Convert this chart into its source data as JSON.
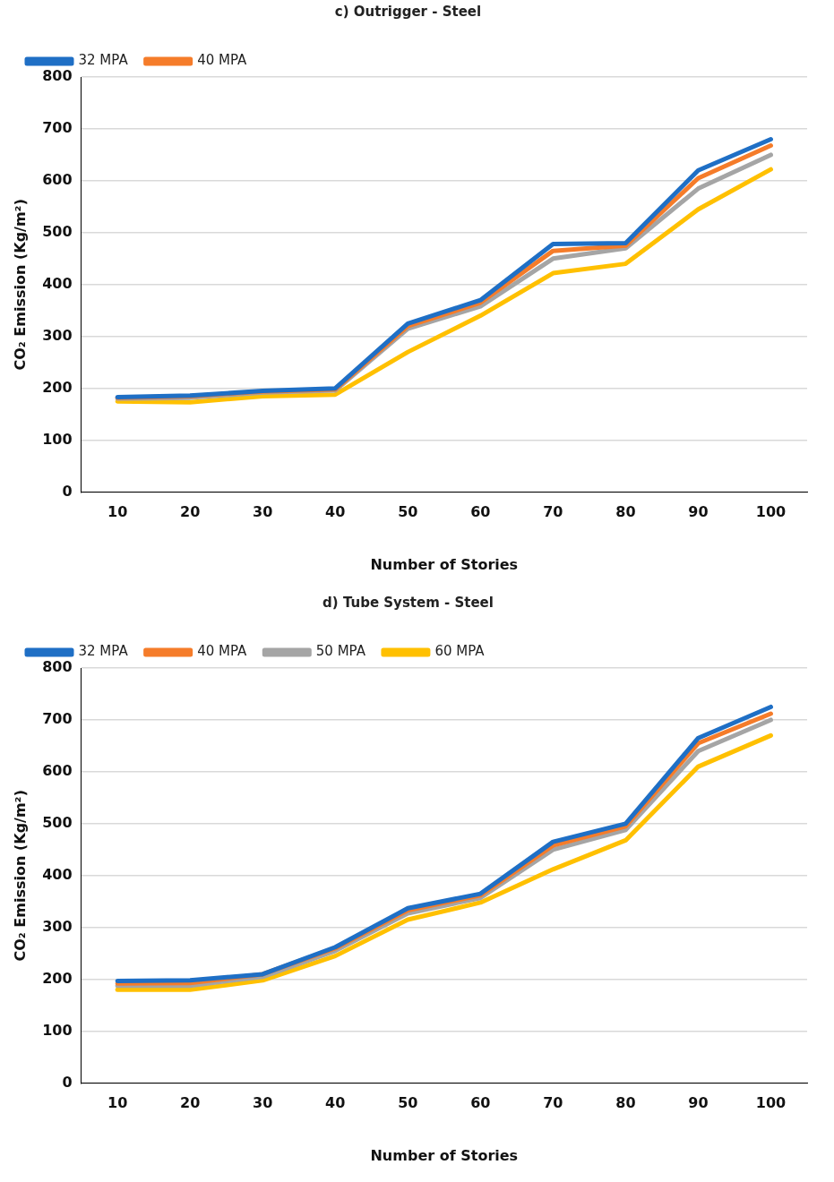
{
  "chart_data": [
    {
      "type": "line",
      "title": "c) Outrigger - Steel",
      "xlabel": "Number of Stories",
      "ylabel": "CO₂ Emission (Kg/m²)",
      "categories": [
        "10",
        "20",
        "30",
        "40",
        "50",
        "60",
        "70",
        "80",
        "90",
        "100"
      ],
      "ylim": [
        0,
        800
      ],
      "yticks": [
        0,
        100,
        200,
        300,
        400,
        500,
        600,
        700,
        800
      ],
      "grid": "y",
      "legend": "top left",
      "marker": "none",
      "line_style": "solid",
      "series": [
        {
          "name": "32 MPA",
          "color": "#1f6fc5",
          "values": [
            183,
            186,
            195,
            200,
            325,
            370,
            478,
            480,
            620,
            680
          ]
        },
        {
          "name": "40 MPA",
          "color": "#f57c2a",
          "values": [
            182,
            185,
            194,
            198,
            320,
            365,
            465,
            475,
            605,
            668
          ]
        },
        {
          "color": "#a5a5a5",
          "values": [
            180,
            182,
            192,
            196,
            315,
            358,
            450,
            470,
            585,
            650
          ]
        },
        {
          "color": "#ffc000",
          "values": [
            175,
            173,
            185,
            188,
            270,
            340,
            422,
            440,
            545,
            622
          ]
        }
      ]
    },
    {
      "type": "line",
      "title": "d) Tube System - Steel",
      "xlabel": "Number of Stories",
      "ylabel": "CO₂ Emission (Kg/m²)",
      "categories": [
        "10",
        "20",
        "30",
        "40",
        "50",
        "60",
        "70",
        "80",
        "90",
        "100"
      ],
      "ylim": [
        0,
        800
      ],
      "yticks": [
        0,
        100,
        200,
        300,
        400,
        500,
        600,
        700,
        800
      ],
      "grid": "y",
      "legend": "top left",
      "marker": "none",
      "line_style": "solid",
      "series": [
        {
          "name": "32 MPA",
          "color": "#1f6fc5",
          "values": [
            197,
            198,
            210,
            262,
            337,
            365,
            465,
            500,
            665,
            725
          ]
        },
        {
          "name": "40 MPA",
          "color": "#f57c2a",
          "values": [
            192,
            193,
            210,
            260,
            333,
            362,
            458,
            495,
            655,
            712
          ]
        },
        {
          "name": "50 MPA",
          "color": "#a5a5a5",
          "values": [
            188,
            188,
            205,
            255,
            327,
            357,
            450,
            488,
            640,
            700
          ]
        },
        {
          "name": "60 MPA",
          "color": "#ffc000",
          "values": [
            180,
            180,
            198,
            245,
            315,
            348,
            412,
            468,
            610,
            670
          ]
        }
      ]
    }
  ]
}
